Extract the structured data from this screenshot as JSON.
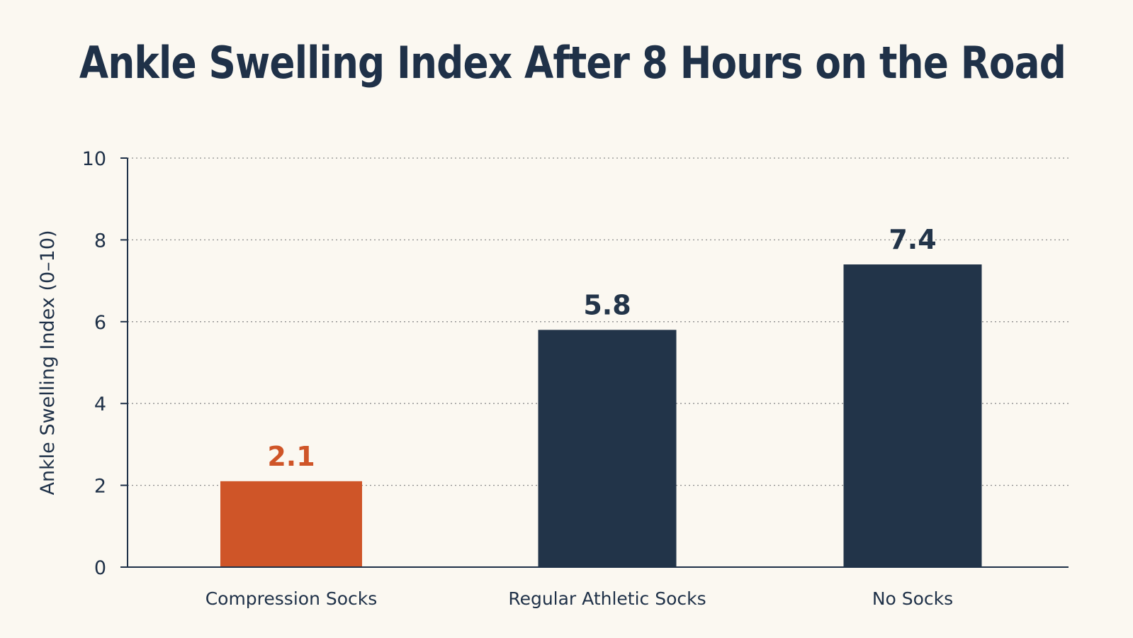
{
  "chart_data": {
    "type": "bar",
    "title": "Ankle Swelling Index After 8 Hours on the Road",
    "xlabel": "",
    "ylabel": "Ankle Swelling Index (0–10)",
    "categories": [
      "Compression Socks",
      "Regular Athletic Socks",
      "No Socks"
    ],
    "values": [
      2.1,
      5.8,
      7.4
    ],
    "data_labels": [
      "2.1",
      "5.8",
      "7.4"
    ],
    "ylim": [
      0,
      10
    ],
    "yticks": [
      0,
      2,
      4,
      6,
      8,
      10
    ],
    "grid": true,
    "legend": "none",
    "colors": {
      "highlight": "#cf5528",
      "default": "#223449",
      "axis": "#1f3148",
      "grid": "#8d8d8d",
      "highlight_label": "#cf5528",
      "default_label": "#223449"
    },
    "highlight_index": 0
  }
}
